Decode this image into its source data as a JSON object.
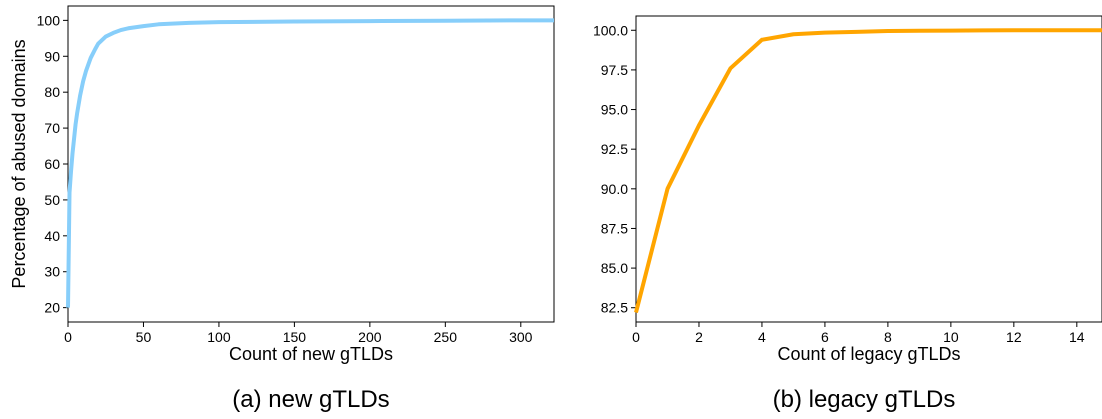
{
  "chart_data": [
    {
      "type": "line",
      "caption": "(a)  new gTLDs",
      "xlabel": "Count of new gTLDs",
      "ylabel": "Percentage of abused domains",
      "xlim": [
        0,
        322
      ],
      "ylim": [
        16,
        104
      ],
      "xticks": [
        0,
        50,
        100,
        150,
        200,
        250,
        300
      ],
      "yticks": [
        20,
        30,
        40,
        50,
        60,
        70,
        80,
        90,
        100
      ],
      "grid": false,
      "color": "#87cefa",
      "series": [
        {
          "x": [
            0,
            1,
            2,
            3,
            4,
            5,
            6,
            8,
            10,
            12,
            15,
            18,
            20,
            25,
            30,
            35,
            40,
            50,
            60,
            80,
            100,
            150,
            200,
            250,
            300,
            322
          ],
          "y": [
            20,
            52,
            58,
            63,
            67,
            71,
            74,
            79,
            83,
            86,
            89.5,
            92,
            93.5,
            95.5,
            96.5,
            97.3,
            97.8,
            98.4,
            98.9,
            99.3,
            99.5,
            99.7,
            99.8,
            99.9,
            100,
            100
          ]
        }
      ]
    },
    {
      "type": "line",
      "caption": "(b)  legacy gTLDs",
      "xlabel": "Count of legacy gTLDs",
      "ylabel": "",
      "xlim": [
        0,
        14.8
      ],
      "ylim": [
        81.6,
        100.9
      ],
      "xticks": [
        0,
        2,
        4,
        6,
        8,
        10,
        12,
        14
      ],
      "yticks": [
        "82.5",
        "85.0",
        "87.5",
        "90.0",
        "92.5",
        "95.0",
        "97.5",
        "100.0"
      ],
      "grid": false,
      "color": "#ffa500",
      "series": [
        {
          "x": [
            0,
            1,
            2,
            3,
            4,
            5,
            6,
            7,
            8,
            9,
            10,
            11,
            12,
            13,
            14,
            14.8
          ],
          "y": [
            82.2,
            90,
            94,
            97.6,
            99.4,
            99.75,
            99.85,
            99.9,
            99.95,
            99.97,
            99.98,
            99.99,
            100,
            100,
            100,
            100
          ]
        }
      ]
    }
  ]
}
